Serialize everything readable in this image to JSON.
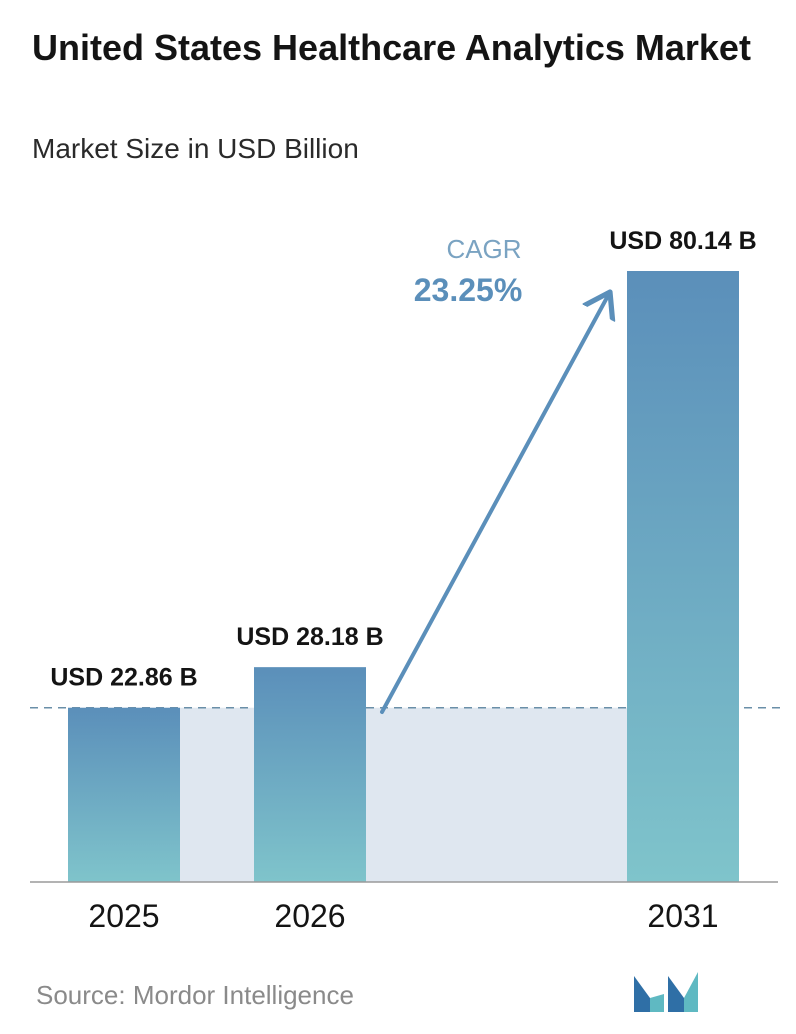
{
  "header": {
    "title": "United States Healthcare Analytics Market",
    "subtitle": "Market Size in USD Billion"
  },
  "chart_data": {
    "type": "bar",
    "title": "United States Healthcare Analytics Market",
    "subtitle": "Market Size in USD Billion",
    "categories": [
      "2025",
      "2026",
      "2031"
    ],
    "values": [
      22.86,
      28.18,
      80.14
    ],
    "data_labels": [
      "USD 22.86 B",
      "USD 28.18 B",
      "USD 80.14 B"
    ],
    "unit": "USD Billion",
    "ylim": [
      0,
      80.14
    ],
    "grid": false,
    "legend": "none",
    "reference_line_value": 22.86,
    "annotation": {
      "label": "CAGR",
      "value": "23.25%"
    }
  },
  "colors": {
    "bar_top": "#5b8fba",
    "bar_bottom": "#7fc4cb",
    "band": "#dfe7f0",
    "arrow": "#5b8fba",
    "cagr_label": "#7aa3c2",
    "cagr_value": "#5b8fba",
    "axis": "#9a9a9a"
  },
  "footer": {
    "source": "Source: Mordor Intelligence",
    "logo_icon": "mordor-intelligence-logo-icon"
  }
}
